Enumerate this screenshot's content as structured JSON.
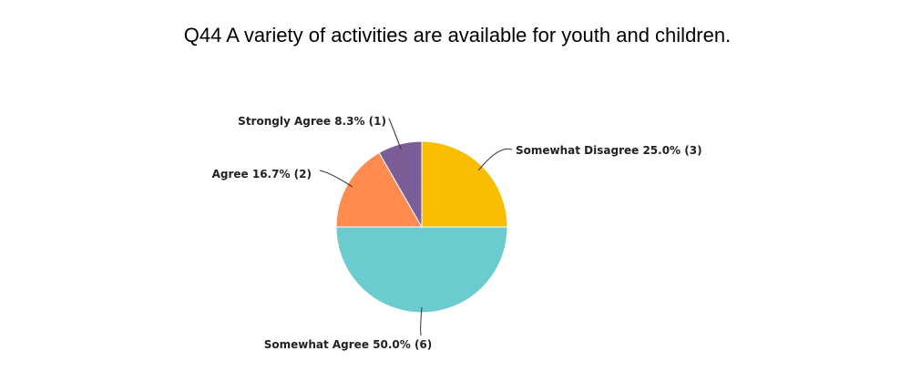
{
  "chart_data": {
    "type": "pie",
    "title": "Q44 A variety of activities are available for youth and children.",
    "slices": [
      {
        "label": "Somewhat Disagree",
        "percent": 25.0,
        "count": 3,
        "color": "#F9BE00",
        "display": "Somewhat Disagree 25.0% (3)"
      },
      {
        "label": "Somewhat Agree",
        "percent": 50.0,
        "count": 6,
        "color": "#6BCBCE",
        "display": "Somewhat Agree 50.0% (6)"
      },
      {
        "label": "Agree",
        "percent": 16.7,
        "count": 2,
        "color": "#FF8B4F",
        "display": "Agree 16.7% (2)"
      },
      {
        "label": "Strongly Agree",
        "percent": 8.3,
        "count": 1,
        "color": "#7B5E97",
        "display": "Strongly Agree 8.3% (1)"
      }
    ],
    "start_angle": "12 o'clock",
    "direction": "clockwise",
    "legend": "none"
  }
}
